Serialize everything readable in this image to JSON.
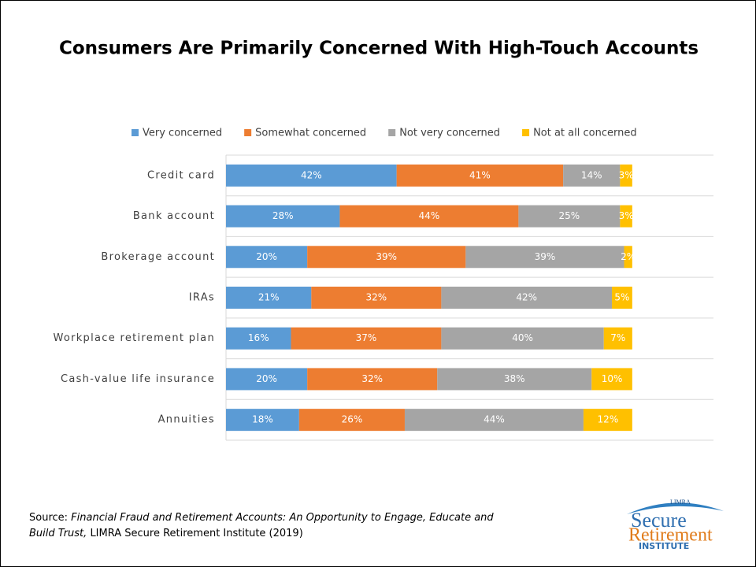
{
  "chart_data": {
    "type": "stacked-barh",
    "title": "Consumers Are Primarily Concerned With High-Touch Accounts",
    "categories": [
      "Credit card",
      "Bank account",
      "Brokerage account",
      "IRAs",
      "Workplace retirement plan",
      "Cash-value life insurance",
      "Annuities"
    ],
    "xlim": [
      0,
      120
    ],
    "legend": "top",
    "series": [
      {
        "name": "Very concerned",
        "color": "#5b9bd5",
        "values": [
          42,
          28,
          20,
          21,
          16,
          20,
          18
        ],
        "value_labels": [
          "42%",
          "28%",
          "20%",
          "21%",
          "16%",
          "20%",
          "18%"
        ]
      },
      {
        "name": "Somewhat concerned",
        "color": "#ed7d31",
        "values": [
          41,
          44,
          39,
          32,
          37,
          32,
          26
        ],
        "value_labels": [
          "41%",
          "44%",
          "39%",
          "32%",
          "37%",
          "32%",
          "26%"
        ]
      },
      {
        "name": "Not very concerned",
        "color": "#a5a5a5",
        "values": [
          14,
          25,
          39,
          42,
          40,
          38,
          44
        ],
        "value_labels": [
          "14%",
          "25%",
          "39%",
          "42%",
          "40%",
          "38%",
          "44%"
        ]
      },
      {
        "name": "Not at all concerned",
        "color": "#ffc000",
        "values": [
          3,
          3,
          2,
          5,
          7,
          10,
          12
        ],
        "value_labels": [
          "3%",
          "3%",
          "2%",
          "5%",
          "7%",
          "10%",
          "12%"
        ]
      }
    ]
  },
  "source": {
    "prefix": "Source:",
    "title": "Financial Fraud and Retirement Accounts: An Opportunity to Engage, Educate and Build Trust,",
    "suffix": "LIMRA Secure Retirement Institute (2019)"
  },
  "logo": {
    "top": "LIMRA",
    "line1": "Secure",
    "line2": "Retirement",
    "line3": "INSTITUTE"
  }
}
